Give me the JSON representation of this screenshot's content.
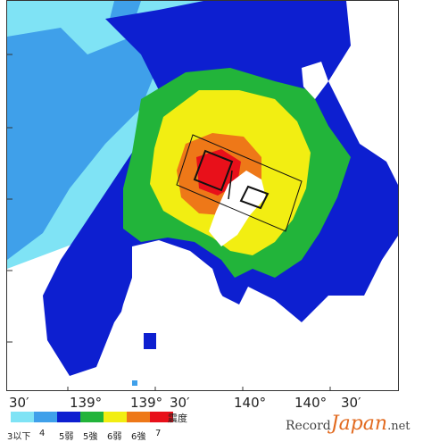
{
  "axis": {
    "lon_labels": [
      "30′",
      "139°",
      "139°",
      "30′",
      "140°",
      "140°",
      "30′"
    ]
  },
  "legend": {
    "title": "震度",
    "labels": [
      "3以下",
      "4",
      "5弱",
      "5強",
      "6弱",
      "6強",
      "7"
    ],
    "colors": [
      "#7fe3f5",
      "#3fa0ea",
      "#0d1fd0",
      "#22b43a",
      "#f2ee12",
      "#ee7818",
      "#e8101a"
    ]
  },
  "watermark": {
    "brand": "Record",
    "script": "Japan",
    "suffix": ".net"
  },
  "colors": {
    "sea": "#ffffff",
    "intensity_3": "#7fe3f5",
    "intensity_4": "#3fa0ea",
    "intensity_5l": "#0d1fd0",
    "intensity_5u": "#22b43a",
    "intensity_6l": "#f2ee12",
    "intensity_6u": "#ee7818",
    "intensity_7": "#e8101a"
  }
}
